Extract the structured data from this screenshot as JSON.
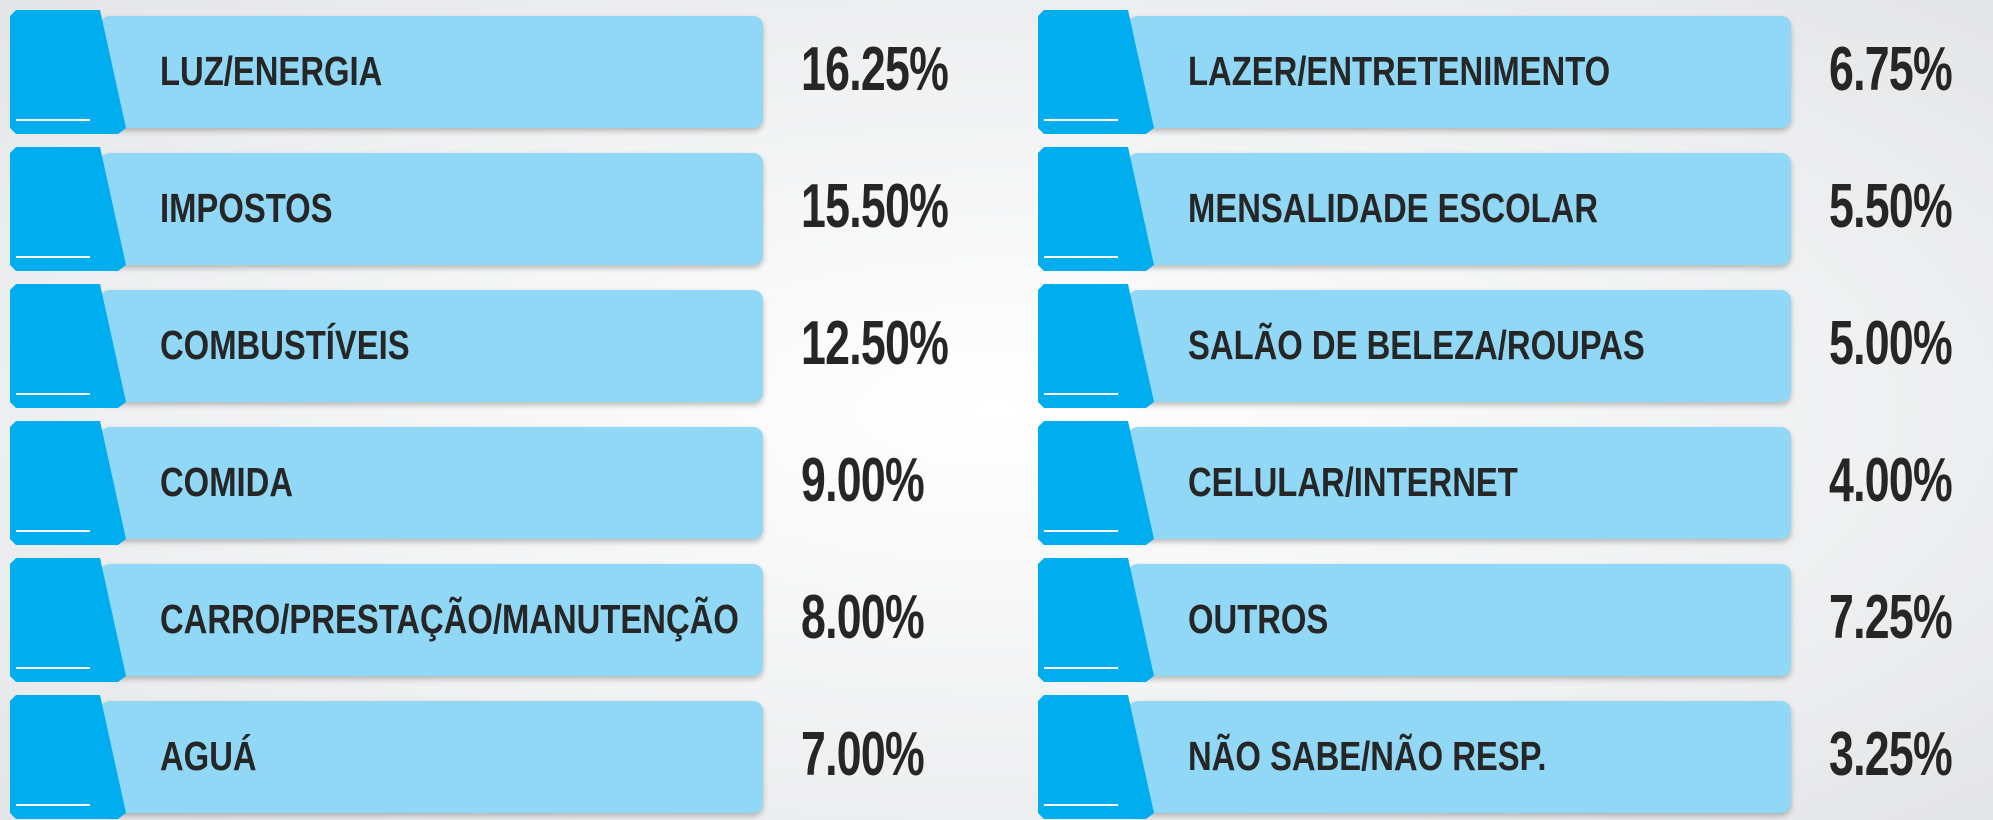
{
  "columns": [
    {
      "items": [
        {
          "label": "LUZ/ENERGIA",
          "value": "16.25%"
        },
        {
          "label": "IMPOSTOS",
          "value": "15.50%"
        },
        {
          "label": "COMBUSTÍVEIS",
          "value": "12.50%"
        },
        {
          "label": "COMIDA",
          "value": "9.00%"
        },
        {
          "label": "CARRO/PRESTAÇÃO/MANUTENÇÃO",
          "value": "8.00%"
        },
        {
          "label": "AGUÁ",
          "value": "7.00%"
        }
      ]
    },
    {
      "items": [
        {
          "label": "LAZER/ENTRETENIMENTO",
          "value": "6.75%"
        },
        {
          "label": "MENSALIDADE ESCOLAR",
          "value": "5.50%"
        },
        {
          "label": "SALÃO DE BELEZA/ROUPAS",
          "value": "5.00%"
        },
        {
          "label": "CELULAR/INTERNET",
          "value": "4.00%"
        },
        {
          "label": "OUTROS",
          "value": "7.25%"
        },
        {
          "label": "NÃO SABE/NÃO RESP.",
          "value": "3.25%"
        }
      ]
    }
  ]
}
